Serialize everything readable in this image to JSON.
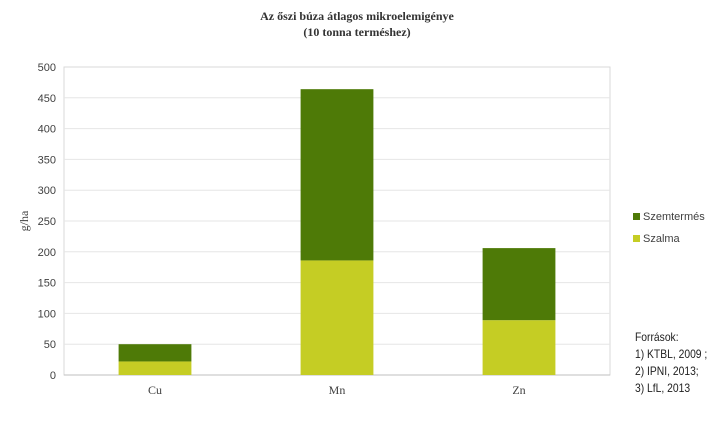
{
  "chart_data": {
    "type": "bar",
    "stacked": true,
    "title": "Az őszi búza átlagos mikroelemigénye",
    "subtitle": "(10 tonna terméshez)",
    "xlabel": "",
    "ylabel": "g/ha",
    "categories": [
      "Cu",
      "Mn",
      "Zn"
    ],
    "series": [
      {
        "name": "Szalma",
        "values": [
          22,
          186,
          89
        ],
        "color": "#c5cd24"
      },
      {
        "name": "Szemtermés",
        "values": [
          28,
          278,
          117
        ],
        "color": "#4e7a07"
      }
    ],
    "ylim": [
      0,
      500
    ],
    "yticks": [
      0,
      50,
      100,
      150,
      200,
      250,
      300,
      350,
      400,
      450,
      500
    ],
    "grid": true,
    "legend_position": "right",
    "legend_order": [
      "Szemtermés",
      "Szalma"
    ]
  },
  "sources": {
    "heading": "Források:",
    "lines": [
      "1) KTBL, 2009 ;",
      "2) IPNI, 2013;",
      "3) LfL, 2013"
    ]
  }
}
